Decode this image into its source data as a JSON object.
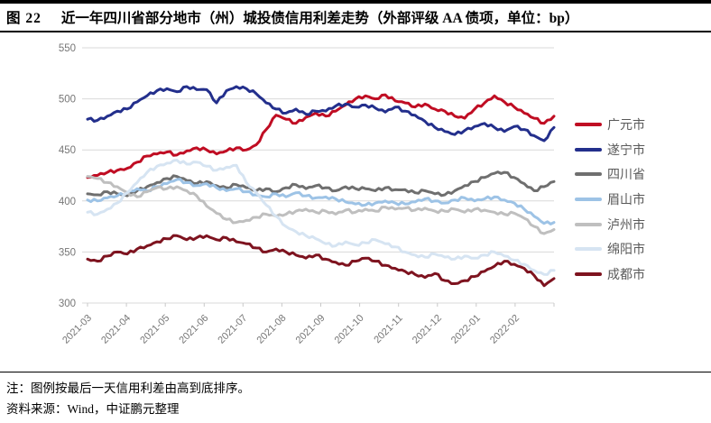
{
  "header": {
    "figure_label": "图 22",
    "title": "近一年四川省部分地市（州）城投债信用利差走势（外部评级 AA 债项，单位：bp）"
  },
  "chart_data": {
    "type": "line",
    "title": "近一年四川省部分地市（州）城投债信用利差走势",
    "unit": "bp",
    "ylim": [
      300,
      550
    ],
    "y_ticks": [
      550,
      500,
      450,
      400,
      350,
      300
    ],
    "x_labels": [
      "2021-03",
      "2021-04",
      "2021-05",
      "2021-06",
      "2021-07",
      "2021-08",
      "2021-09",
      "2021-10",
      "2021-11",
      "2021-12",
      "2022-01",
      "2022-02"
    ],
    "points_per_month": 4,
    "grid": "horizontal",
    "legend_position": "right",
    "legend_order_note": "sorted by last-day spread, high to low",
    "series": [
      {
        "key": "guangyuan",
        "name": "广元市",
        "color": "#C00D23",
        "values": [
          423,
          425,
          428,
          430,
          432,
          438,
          444,
          446,
          448,
          445,
          449,
          452,
          450,
          446,
          449,
          452,
          450,
          455,
          470,
          484,
          480,
          476,
          482,
          486,
          483,
          488,
          494,
          500,
          503,
          500,
          504,
          498,
          496,
          492,
          495,
          490,
          488,
          483,
          481,
          490,
          496,
          503,
          497,
          492,
          486,
          481,
          476,
          483
        ]
      },
      {
        "key": "suining",
        "name": "遂宁市",
        "color": "#232F8C",
        "values": [
          480,
          479,
          483,
          488,
          490,
          497,
          503,
          508,
          510,
          507,
          512,
          509,
          509,
          496,
          508,
          512,
          510,
          505,
          496,
          490,
          486,
          490,
          485,
          488,
          488,
          493,
          495,
          492,
          494,
          491,
          487,
          492,
          488,
          484,
          478,
          472,
          468,
          465,
          469,
          473,
          476,
          472,
          468,
          473,
          470,
          464,
          459,
          472
        ]
      },
      {
        "key": "sichuan",
        "name": "四川省",
        "color": "#6F6F6F",
        "values": [
          407,
          406,
          409,
          407,
          405,
          410,
          414,
          418,
          422,
          424,
          420,
          417,
          419,
          415,
          413,
          416,
          413,
          410,
          412,
          409,
          413,
          416,
          412,
          415,
          413,
          410,
          414,
          412,
          412,
          410,
          413,
          411,
          411,
          408,
          410,
          407,
          406,
          410,
          415,
          419,
          423,
          427,
          428,
          423,
          417,
          410,
          414,
          419
        ]
      },
      {
        "key": "meishan",
        "name": "眉山市",
        "color": "#9DC3E6",
        "values": [
          401,
          400,
          403,
          405,
          408,
          412,
          410,
          414,
          417,
          421,
          418,
          415,
          417,
          413,
          410,
          412,
          409,
          406,
          404,
          407,
          404,
          408,
          405,
          403,
          404,
          402,
          399,
          397,
          396,
          398,
          400,
          398,
          397,
          399,
          402,
          400,
          398,
          401,
          403,
          400,
          402,
          404,
          401,
          398,
          392,
          385,
          378,
          379
        ]
      },
      {
        "key": "luzhou",
        "name": "泸州市",
        "color": "#BFBFBF",
        "values": [
          424,
          422,
          418,
          414,
          408,
          404,
          409,
          413,
          412,
          414,
          410,
          405,
          395,
          388,
          382,
          379,
          381,
          384,
          387,
          385,
          387,
          390,
          392,
          389,
          390,
          387,
          391,
          389,
          392,
          390,
          394,
          392,
          393,
          391,
          393,
          390,
          390,
          392,
          389,
          392,
          391,
          389,
          387,
          388,
          383,
          375,
          368,
          372
        ]
      },
      {
        "key": "mianyang",
        "name": "绵阳市",
        "color": "#D6E4F2",
        "values": [
          389,
          387,
          392,
          398,
          408,
          418,
          428,
          434,
          437,
          440,
          436,
          438,
          434,
          430,
          433,
          435,
          418,
          408,
          396,
          385,
          375,
          370,
          366,
          363,
          358,
          356,
          360,
          357,
          359,
          362,
          358,
          355,
          350,
          347,
          345,
          348,
          345,
          343,
          346,
          344,
          347,
          350,
          346,
          342,
          338,
          332,
          328,
          332
        ]
      },
      {
        "key": "chengdu",
        "name": "成都市",
        "color": "#7E131F",
        "values": [
          343,
          341,
          346,
          350,
          348,
          353,
          356,
          360,
          363,
          366,
          362,
          364,
          366,
          362,
          364,
          360,
          358,
          354,
          350,
          353,
          350,
          347,
          344,
          347,
          343,
          340,
          337,
          341,
          344,
          341,
          337,
          334,
          331,
          328,
          325,
          329,
          322,
          319,
          322,
          326,
          331,
          336,
          341,
          338,
          334,
          327,
          317,
          324
        ]
      }
    ],
    "style": {
      "gridline_color": "#D9D9D9",
      "axis_text_color": "#767676",
      "line_width": 3
    }
  },
  "footer": {
    "note": "注：图例按最后一天信用利差由高到底排序。",
    "source": "资料来源：Wind，中证鹏元整理"
  }
}
